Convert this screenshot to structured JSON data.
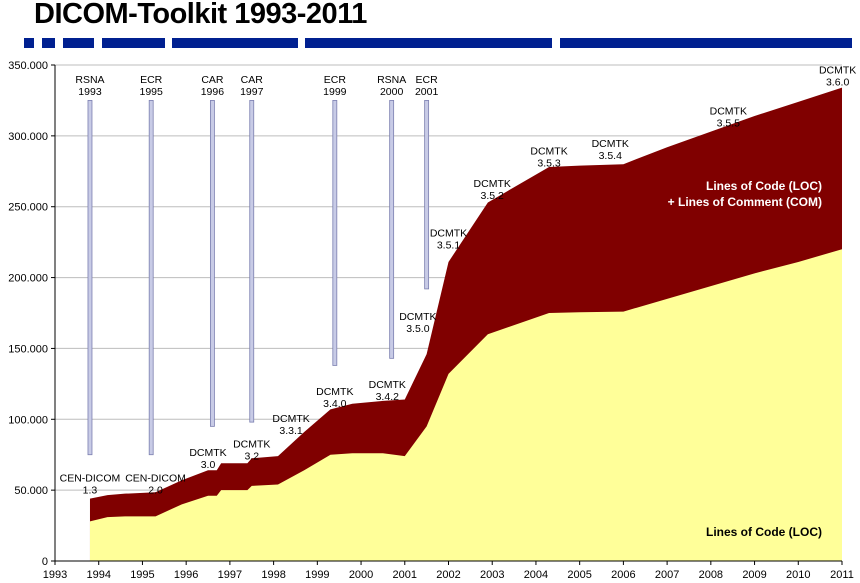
{
  "title": "DICOM-Toolkit 1993-2011",
  "chart_data": {
    "type": "area",
    "xlim": [
      1993,
      2011
    ],
    "ylim": [
      0,
      350000
    ],
    "grid": "horizontal",
    "x_ticks": [
      "1993",
      "1994",
      "1995",
      "1996",
      "1997",
      "1998",
      "1999",
      "2000",
      "2001",
      "2002",
      "2003",
      "2004",
      "2005",
      "2006",
      "2007",
      "2008",
      "2009",
      "2010",
      "2011"
    ],
    "y_ticks": [
      "0",
      "50.000",
      "100.000",
      "150.000",
      "200.000",
      "250.000",
      "300.000",
      "350.000"
    ],
    "series": [
      {
        "name": "Lines of Code (LOC)",
        "color": "#ffff99",
        "label_color": "#000000",
        "label_lines": [
          "Lines of Code (LOC)"
        ],
        "points": [
          [
            1993.8,
            28000
          ],
          [
            1994.2,
            31000
          ],
          [
            1994.6,
            31500
          ],
          [
            1995.3,
            31500
          ],
          [
            1995.9,
            40000
          ],
          [
            1996.5,
            46000
          ],
          [
            1996.7,
            46000
          ],
          [
            1996.8,
            50000
          ],
          [
            1997.4,
            50000
          ],
          [
            1997.5,
            53000
          ],
          [
            1998.1,
            54000
          ],
          [
            1998.7,
            64000
          ],
          [
            1999.3,
            75000
          ],
          [
            1999.8,
            76000
          ],
          [
            2000.5,
            76000
          ],
          [
            2001.0,
            74000
          ],
          [
            2001.5,
            95000
          ],
          [
            2002.0,
            132000
          ],
          [
            2002.9,
            160000
          ],
          [
            2004.3,
            175000
          ],
          [
            2005.0,
            175500
          ],
          [
            2006.0,
            176000
          ],
          [
            2007.0,
            185000
          ],
          [
            2008.0,
            194000
          ],
          [
            2009.0,
            203000
          ],
          [
            2010.0,
            211000
          ],
          [
            2011.0,
            220000
          ]
        ]
      },
      {
        "name": "Lines of Code (LOC) + Lines of Comment (COM)",
        "color": "#800000",
        "label_color": "#ffffff",
        "label_lines": [
          "Lines of Code (LOC)",
          "+ Lines of Comment (COM)"
        ],
        "points": [
          [
            1993.8,
            44000
          ],
          [
            1994.2,
            46500
          ],
          [
            1994.6,
            47500
          ],
          [
            1995.3,
            48500
          ],
          [
            1995.9,
            57000
          ],
          [
            1996.5,
            64000
          ],
          [
            1996.7,
            64000
          ],
          [
            1996.8,
            69000
          ],
          [
            1997.4,
            69000
          ],
          [
            1997.5,
            72500
          ],
          [
            1998.1,
            74000
          ],
          [
            1998.7,
            91000
          ],
          [
            1999.3,
            107000
          ],
          [
            1999.8,
            111000
          ],
          [
            2000.5,
            113000
          ],
          [
            2001.0,
            114000
          ],
          [
            2001.5,
            146000
          ],
          [
            2002.0,
            211000
          ],
          [
            2002.9,
            253000
          ],
          [
            2004.3,
            278000
          ],
          [
            2005.0,
            279000
          ],
          [
            2006.0,
            280000
          ],
          [
            2007.0,
            292000
          ],
          [
            2008.0,
            303000
          ],
          [
            2009.0,
            314000
          ],
          [
            2010.0,
            324000
          ],
          [
            2011.0,
            334000
          ]
        ]
      }
    ],
    "events": [
      {
        "lines": [
          "RSNA",
          "1993"
        ],
        "x": 1993.8,
        "y_top": 325000,
        "y_bottom": 75000
      },
      {
        "lines": [
          "ECR",
          "1995"
        ],
        "x": 1995.2,
        "y_top": 325000,
        "y_bottom": 75000
      },
      {
        "lines": [
          "CAR",
          "1996"
        ],
        "x": 1996.6,
        "y_top": 325000,
        "y_bottom": 95000
      },
      {
        "lines": [
          "CAR",
          "1997"
        ],
        "x": 1997.5,
        "y_top": 325000,
        "y_bottom": 98000
      },
      {
        "lines": [
          "ECR",
          "1999"
        ],
        "x": 1999.4,
        "y_top": 325000,
        "y_bottom": 138000
      },
      {
        "lines": [
          "RSNA",
          "2000"
        ],
        "x": 2000.7,
        "y_top": 325000,
        "y_bottom": 143000
      },
      {
        "lines": [
          "ECR",
          "2001"
        ],
        "x": 2001.5,
        "y_top": 325000,
        "y_bottom": 192000
      }
    ],
    "releases": [
      {
        "lines": [
          "CEN-DICOM",
          "1.3"
        ],
        "x": 1993.8,
        "y": 56000
      },
      {
        "lines": [
          "CEN-DICOM",
          "2.0"
        ],
        "x": 1995.3,
        "y": 56000
      },
      {
        "lines": [
          "DCMTK",
          "3.0"
        ],
        "x": 1996.5,
        "y": 74000
      },
      {
        "lines": [
          "DCMTK",
          "3.2"
        ],
        "x": 1997.5,
        "y": 80000
      },
      {
        "lines": [
          "DCMTK",
          "3.3.1"
        ],
        "x": 1998.4,
        "y": 98000
      },
      {
        "lines": [
          "DCMTK",
          "3.4.0"
        ],
        "x": 1999.4,
        "y": 117000
      },
      {
        "lines": [
          "DCMTK",
          "3.4.2"
        ],
        "x": 2000.6,
        "y": 122000
      },
      {
        "lines": [
          "DCMTK",
          "3.5.0"
        ],
        "x": 2001.3,
        "y": 170000
      },
      {
        "lines": [
          "DCMTK",
          "3.5.1"
        ],
        "x": 2002.0,
        "y": 229000
      },
      {
        "lines": [
          "DCMTK",
          "3.5.2"
        ],
        "x": 2003.0,
        "y": 264000
      },
      {
        "lines": [
          "DCMTK",
          "3.5.3"
        ],
        "x": 2004.3,
        "y": 287000
      },
      {
        "lines": [
          "DCMTK",
          "3.5.4"
        ],
        "x": 2005.7,
        "y": 292000
      },
      {
        "lines": [
          "DCMTK",
          "3.5.5"
        ],
        "x": 2008.4,
        "y": 315000
      },
      {
        "lines": [
          "DCMTK",
          "3.6.0"
        ],
        "x": 2010.9,
        "y": 344000
      }
    ]
  }
}
